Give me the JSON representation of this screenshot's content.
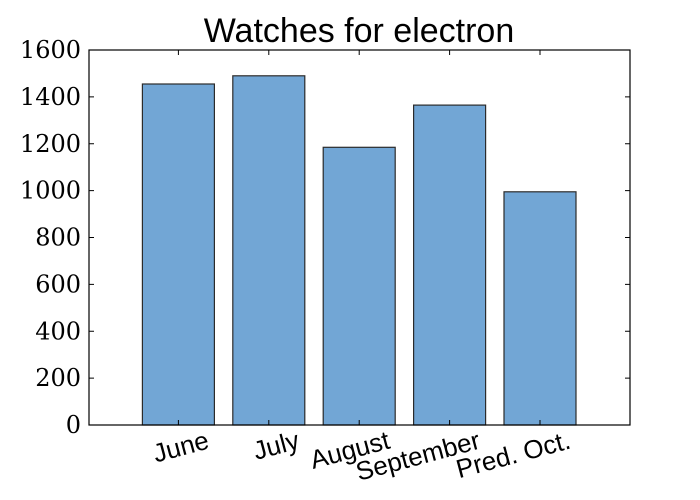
{
  "chart_data": {
    "type": "bar",
    "title": "Watches for electron",
    "xlabel": "",
    "ylabel": "",
    "categories": [
      "June",
      "July",
      "August",
      "September",
      "Pred. Oct."
    ],
    "values": [
      1455,
      1490,
      1185,
      1365,
      995
    ],
    "ylim": [
      0,
      1600
    ],
    "yticks": [
      "0",
      "200",
      "400",
      "600",
      "800",
      "1000",
      "1200",
      "1400",
      "1600"
    ],
    "grid": false,
    "bar_color": "#72a6d5",
    "edge_color": "#2b2b2b"
  }
}
